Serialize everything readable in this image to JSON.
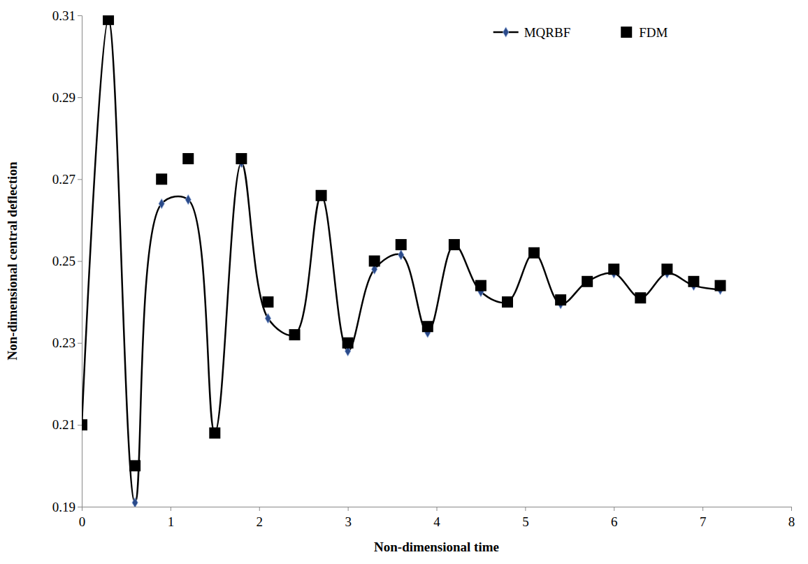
{
  "chart_data": {
    "type": "line",
    "x_label": "Non-dimensional time",
    "y_label": "Non-dimensional central deflection",
    "x": [
      0,
      0.3,
      0.6,
      0.9,
      1.2,
      1.5,
      1.8,
      2.1,
      2.4,
      2.7,
      3.0,
      3.3,
      3.6,
      3.9,
      4.2,
      4.5,
      4.8,
      5.1,
      5.4,
      5.7,
      6.0,
      6.3,
      6.6,
      6.9,
      7.2
    ],
    "series": [
      {
        "name": "MQRBF",
        "color": "#000000",
        "marker": "diamond",
        "line_style": "solid",
        "values": [
          0.21,
          0.309,
          0.191,
          0.264,
          0.265,
          0.208,
          0.274,
          0.236,
          0.232,
          0.266,
          0.228,
          0.248,
          0.2515,
          0.2325,
          0.254,
          0.2425,
          0.24,
          0.252,
          0.2395,
          0.245,
          0.247,
          0.241,
          0.247,
          0.244,
          0.243
        ]
      },
      {
        "name": "FDM",
        "color": "#000000",
        "marker": "square",
        "line_style": "none",
        "values": [
          0.21,
          0.309,
          0.2,
          0.27,
          0.275,
          0.208,
          0.275,
          0.24,
          0.232,
          0.266,
          0.23,
          0.25,
          0.254,
          0.234,
          0.254,
          0.244,
          0.24,
          0.252,
          0.2405,
          0.245,
          0.248,
          0.241,
          0.248,
          0.245,
          0.244
        ]
      }
    ],
    "xlim": [
      0,
      8
    ],
    "xticks": [
      0,
      1,
      2,
      3,
      4,
      5,
      6,
      7,
      8
    ],
    "ylim": [
      0.19,
      0.31
    ],
    "yticks": [
      0.19,
      0.21,
      0.23,
      0.25,
      0.27,
      0.29,
      0.31
    ],
    "grid": false,
    "legend": "top-right"
  }
}
